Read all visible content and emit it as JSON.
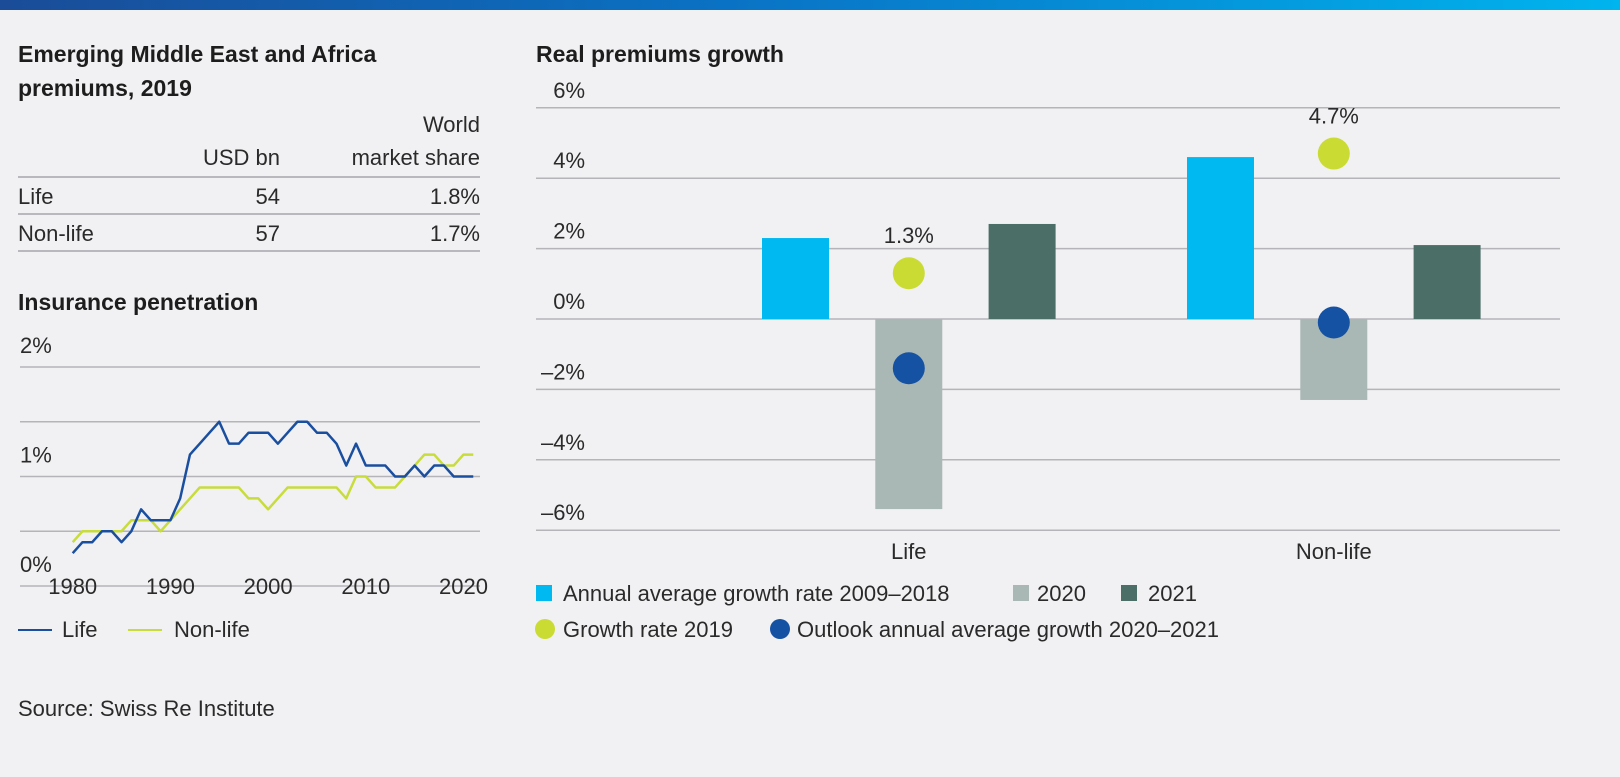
{
  "header": {
    "accent_gradient": [
      "#1a4c98",
      "#00b4ee"
    ]
  },
  "table": {
    "title_line1": "Emerging Middle East and Africa",
    "title_line2": "premiums, 2019",
    "col_usd": "USD bn",
    "col_share_line1": "World",
    "col_share_line2": "market share",
    "rows": [
      {
        "label": "Life",
        "usd": "54",
        "share": "1.8%"
      },
      {
        "label": "Non-life",
        "usd": "57",
        "share": "1.7%"
      }
    ]
  },
  "source": "Source: Swiss Re Institute",
  "chart_data": [
    {
      "type": "line",
      "title": "Insurance penetration",
      "x": [
        1980,
        1981,
        1982,
        1983,
        1984,
        1985,
        1986,
        1987,
        1988,
        1989,
        1990,
        1991,
        1992,
        1993,
        1994,
        1995,
        1996,
        1997,
        1998,
        1999,
        2000,
        2001,
        2002,
        2003,
        2004,
        2005,
        2006,
        2007,
        2008,
        2009,
        2010,
        2011,
        2012,
        2013,
        2014,
        2015,
        2016,
        2017,
        2018,
        2019,
        2020,
        2021
      ],
      "series": [
        {
          "name": "Life",
          "color": "#1a4fa0",
          "values": [
            0.3,
            0.4,
            0.4,
            0.5,
            0.5,
            0.4,
            0.5,
            0.7,
            0.6,
            0.6,
            0.6,
            0.8,
            1.2,
            1.3,
            1.4,
            1.5,
            1.3,
            1.3,
            1.4,
            1.4,
            1.4,
            1.3,
            1.4,
            1.5,
            1.5,
            1.4,
            1.4,
            1.3,
            1.1,
            1.3,
            1.1,
            1.1,
            1.1,
            1.0,
            1.0,
            1.1,
            1.0,
            1.1,
            1.1,
            1.0,
            1.0,
            1.0
          ]
        },
        {
          "name": "Non-life",
          "color": "#c8dc3c",
          "values": [
            0.4,
            0.5,
            0.5,
            0.5,
            0.5,
            0.5,
            0.6,
            0.6,
            0.6,
            0.5,
            0.6,
            0.7,
            0.8,
            0.9,
            0.9,
            0.9,
            0.9,
            0.9,
            0.8,
            0.8,
            0.7,
            0.8,
            0.9,
            0.9,
            0.9,
            0.9,
            0.9,
            0.9,
            0.8,
            1.0,
            1.0,
            0.9,
            0.9,
            0.9,
            1.0,
            1.1,
            1.2,
            1.2,
            1.1,
            1.1,
            1.2,
            1.2
          ]
        }
      ],
      "ylim": [
        0,
        2
      ],
      "y_ticks": [
        "0%",
        "1%",
        "2%"
      ],
      "x_ticks": [
        "1980",
        "1990",
        "2000",
        "2010",
        "2020"
      ],
      "grid": true,
      "legend": "bottom"
    },
    {
      "type": "bar",
      "title": "Real premiums growth",
      "categories": [
        "Life",
        "Non-life"
      ],
      "series": [
        {
          "name": "Annual average growth rate 2009–2018",
          "color": "#00b9f1",
          "values": [
            2.3,
            4.6
          ]
        },
        {
          "name": "2020",
          "color": "#a9b8b4",
          "values": [
            -5.4,
            -2.3
          ]
        },
        {
          "name": "2021",
          "color": "#4b6f66",
          "values": [
            2.7,
            2.1
          ]
        }
      ],
      "markers": [
        {
          "name": "Growth rate 2019",
          "color": "#cadb34",
          "values": [
            1.3,
            4.7
          ],
          "labels": [
            "1.3%",
            "4.7%"
          ]
        },
        {
          "name": "Outlook annual average growth 2020–2021",
          "color": "#1652a4",
          "values": [
            -1.4,
            -0.1
          ]
        }
      ],
      "ylim": [
        -6,
        6
      ],
      "y_ticks": [
        "6%",
        "4%",
        "2%",
        "0%",
        "–2%",
        "–4%",
        "–6%"
      ],
      "grid": true,
      "legend": "bottom"
    }
  ]
}
